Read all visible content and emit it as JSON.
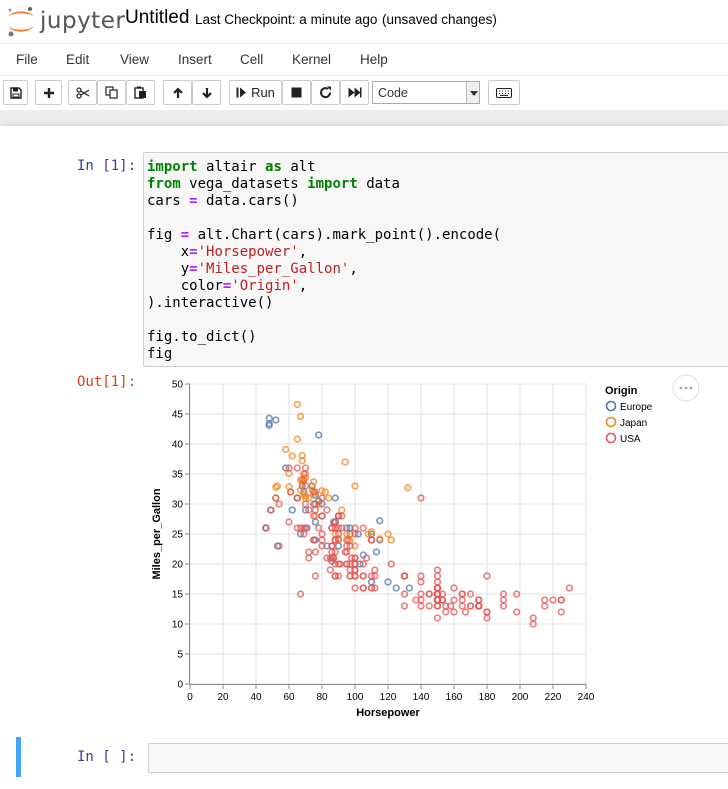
{
  "header": {
    "logo_text": "jupyter",
    "notebook_name": "Untitled",
    "checkpoint": "Last Checkpoint: a minute ago",
    "autosave": "(unsaved changes)"
  },
  "menu": [
    "File",
    "Edit",
    "View",
    "Insert",
    "Cell",
    "Kernel",
    "Help"
  ],
  "toolbar": {
    "icons": [
      "save-icon",
      "plus-icon",
      "cut-icon",
      "copy-icon",
      "paste-icon",
      "arrow-up-icon",
      "arrow-down-icon",
      "step-forward-icon",
      "stop-icon",
      "restart-icon",
      "fast-forward-icon",
      "keyboard-icon"
    ],
    "run_label": "Run",
    "cell_type": "Code"
  },
  "cells": [
    {
      "in_prompt": "In [1]:",
      "out_prompt": "Out[1]:",
      "code_lines": [
        "import altair as alt",
        "from vega_datasets import data",
        "cars = data.cars()",
        "",
        "fig = alt.Chart(cars).mark_point().encode(",
        "    x='Horsepower',",
        "    y='Miles_per_Gallon',",
        "    color='Origin',",
        ").interactive()",
        "",
        "fig.to_dict()",
        "fig"
      ]
    },
    {
      "in_prompt": "In [ ]:"
    }
  ],
  "chart_data": {
    "type": "scatter",
    "xlabel": "Horsepower",
    "ylabel": "Miles_per_Gallon",
    "xlim": [
      0,
      240
    ],
    "ylim": [
      0,
      50
    ],
    "xticks": [
      0,
      20,
      40,
      60,
      80,
      100,
      120,
      140,
      160,
      180,
      200,
      220,
      240
    ],
    "yticks": [
      0,
      5,
      10,
      15,
      20,
      25,
      30,
      35,
      40,
      45,
      50
    ],
    "grid": true,
    "legend": {
      "title": "Origin",
      "position": "right"
    },
    "series": [
      {
        "name": "Europe",
        "color": "#4c78a8",
        "points": [
          [
            46,
            26
          ],
          [
            46,
            26
          ],
          [
            48,
            43.1
          ],
          [
            48,
            44.3
          ],
          [
            48,
            43.4
          ],
          [
            49,
            29
          ],
          [
            52,
            44
          ],
          [
            53,
            23
          ],
          [
            58,
            36
          ],
          [
            62,
            29
          ],
          [
            65,
            31
          ],
          [
            67,
            25
          ],
          [
            68,
            33
          ],
          [
            69,
            32
          ],
          [
            70,
            29
          ],
          [
            71,
            26
          ],
          [
            74,
            33
          ],
          [
            75,
            30
          ],
          [
            76,
            27
          ],
          [
            76,
            24
          ],
          [
            76,
            31.5
          ],
          [
            78,
            30.5
          ],
          [
            78,
            41.5
          ],
          [
            80,
            28
          ],
          [
            80,
            30
          ],
          [
            83,
            23
          ],
          [
            86,
            20.5
          ],
          [
            87,
            27
          ],
          [
            88,
            27
          ],
          [
            88,
            31
          ],
          [
            90,
            28
          ],
          [
            90,
            23
          ],
          [
            95,
            26
          ],
          [
            97,
            26
          ],
          [
            102,
            25
          ],
          [
            103,
            20
          ],
          [
            105,
            21.5
          ],
          [
            110,
            25
          ],
          [
            110,
            17
          ],
          [
            113,
            22
          ],
          [
            115,
            24
          ],
          [
            115,
            27.2
          ],
          [
            120,
            17
          ],
          [
            125,
            16
          ],
          [
            133,
            16
          ]
        ]
      },
      {
        "name": "Japan",
        "color": "#f58518",
        "points": [
          [
            52,
            31
          ],
          [
            52,
            32.8
          ],
          [
            53,
            33
          ],
          [
            58,
            39.1
          ],
          [
            60,
            32.9
          ],
          [
            60,
            35.1
          ],
          [
            61,
            32
          ],
          [
            62,
            38
          ],
          [
            65,
            31
          ],
          [
            65,
            46.6
          ],
          [
            65,
            40.8
          ],
          [
            67,
            32.3
          ],
          [
            67,
            44.6
          ],
          [
            67,
            34
          ],
          [
            68,
            37.2
          ],
          [
            68,
            33.5
          ],
          [
            68,
            38.1
          ],
          [
            68,
            34.1
          ],
          [
            69,
            31.6
          ],
          [
            70,
            35
          ],
          [
            70,
            31.3
          ],
          [
            70,
            34.4
          ],
          [
            70,
            30.9
          ],
          [
            72,
            31
          ],
          [
            74,
            32.4
          ],
          [
            75,
            31.5
          ],
          [
            75,
            33.7
          ],
          [
            76,
            28
          ],
          [
            76,
            32
          ],
          [
            78,
            30
          ],
          [
            80,
            32.2
          ],
          [
            82,
            32
          ],
          [
            84,
            31
          ],
          [
            88,
            25
          ],
          [
            88,
            24
          ],
          [
            90,
            24.2
          ],
          [
            92,
            29
          ],
          [
            94,
            37
          ],
          [
            95,
            25
          ],
          [
            96,
            24
          ],
          [
            97,
            18
          ],
          [
            97,
            23.9
          ],
          [
            100,
            23
          ],
          [
            100,
            33
          ],
          [
            108,
            25
          ],
          [
            110,
            25.4
          ],
          [
            115,
            24.2
          ],
          [
            120,
            25
          ],
          [
            122,
            24
          ],
          [
            132,
            32.7
          ]
        ]
      },
      {
        "name": "USA",
        "color": "#e45756",
        "points": [
          [
            130,
            18
          ],
          [
            165,
            15
          ],
          [
            150,
            18
          ],
          [
            150,
            16
          ],
          [
            140,
            17
          ],
          [
            198,
            15
          ],
          [
            220,
            14
          ],
          [
            215,
            14
          ],
          [
            225,
            14
          ],
          [
            190,
            15
          ],
          [
            170,
            15
          ],
          [
            160,
            14
          ],
          [
            150,
            15
          ],
          [
            225,
            14
          ],
          [
            95,
            22
          ],
          [
            97,
            18
          ],
          [
            85,
            21
          ],
          [
            88,
            27
          ],
          [
            88,
            26
          ],
          [
            90,
            28
          ],
          [
            100,
            19
          ],
          [
            105,
            18
          ],
          [
            100,
            21
          ],
          [
            88,
            24
          ],
          [
            100,
            20
          ],
          [
            165,
            15
          ],
          [
            175,
            14
          ],
          [
            153,
            15
          ],
          [
            150,
            14
          ],
          [
            180,
            12
          ],
          [
            170,
            13
          ],
          [
            175,
            13
          ],
          [
            110,
            18
          ],
          [
            72,
            22
          ],
          [
            100,
            19
          ],
          [
            88,
            18
          ],
          [
            86,
            23
          ],
          [
            90,
            28
          ],
          [
            70,
            30
          ],
          [
            76,
            30
          ],
          [
            65,
            31
          ],
          [
            69,
            35
          ],
          [
            60,
            27
          ],
          [
            70,
            26
          ],
          [
            95,
            24
          ],
          [
            80,
            25
          ],
          [
            54,
            23
          ],
          [
            90,
            20
          ],
          [
            86,
            21
          ],
          [
            165,
            13
          ],
          [
            175,
            14
          ],
          [
            150,
            15
          ],
          [
            153,
            14
          ],
          [
            150,
            17
          ],
          [
            208,
            11
          ],
          [
            155,
            13
          ],
          [
            160,
            12
          ],
          [
            190,
            13
          ],
          [
            97,
            19
          ],
          [
            150,
            15
          ],
          [
            130,
            13
          ],
          [
            140,
            13
          ],
          [
            150,
            14
          ],
          [
            112,
            18
          ],
          [
            76,
            22
          ],
          [
            87,
            21
          ],
          [
            69,
            26
          ],
          [
            86,
            22
          ],
          [
            92,
            28
          ],
          [
            97,
            23
          ],
          [
            80,
            28
          ],
          [
            88,
            27
          ],
          [
            175,
            13
          ],
          [
            150,
            14
          ],
          [
            145,
            13
          ],
          [
            137,
            14
          ],
          [
            150,
            15
          ],
          [
            198,
            12
          ],
          [
            150,
            13
          ],
          [
            158,
            13
          ],
          [
            150,
            14
          ],
          [
            215,
            13
          ],
          [
            225,
            12
          ],
          [
            175,
            13
          ],
          [
            105,
            18
          ],
          [
            100,
            16
          ],
          [
            100,
            18
          ],
          [
            88,
            18
          ],
          [
            95,
            23
          ],
          [
            46,
            26
          ],
          [
            150,
            11
          ],
          [
            167,
            12
          ],
          [
            170,
            13
          ],
          [
            180,
            12
          ],
          [
            100,
            18
          ],
          [
            88,
            20
          ],
          [
            72,
            21
          ],
          [
            94,
            22
          ],
          [
            90,
            18
          ],
          [
            85,
            19
          ],
          [
            107,
            21
          ],
          [
            90,
            26
          ],
          [
            145,
            15
          ],
          [
            230,
            16
          ],
          [
            49,
            29
          ],
          [
            75,
            24
          ],
          [
            91,
            20
          ],
          [
            112,
            19
          ],
          [
            150,
            15
          ],
          [
            110,
            24
          ],
          [
            122,
            20
          ],
          [
            180,
            11
          ],
          [
            95,
            20
          ],
          [
            100,
            21
          ],
          [
            100,
            19
          ],
          [
            67,
            15
          ],
          [
            80,
            31
          ],
          [
            65,
            26
          ],
          [
            75,
            32
          ],
          [
            100,
            25
          ],
          [
            110,
            16
          ],
          [
            105,
            16
          ],
          [
            140,
            18
          ],
          [
            150,
            16
          ],
          [
            150,
            13
          ],
          [
            140,
            14
          ],
          [
            150,
            14
          ],
          [
            83,
            29
          ],
          [
            67,
            26
          ],
          [
            78,
            26
          ],
          [
            52,
            31
          ],
          [
            61,
            32
          ],
          [
            75,
            28
          ],
          [
            75,
            24
          ],
          [
            100,
            26
          ],
          [
            110,
            24
          ],
          [
            105,
            26
          ],
          [
            140,
            31
          ],
          [
            150,
            19
          ],
          [
            180,
            18
          ],
          [
            145,
            15
          ],
          [
            130,
            15
          ],
          [
            150,
            16
          ],
          [
            150,
            15
          ],
          [
            110,
            16
          ],
          [
            105,
            16
          ],
          [
            72,
            29
          ],
          [
            88,
            24
          ],
          [
            86,
            26
          ],
          [
            90,
            25
          ],
          [
            70,
            33
          ],
          [
            76,
            29
          ],
          [
            65,
            36
          ],
          [
            69,
            34
          ],
          [
            60,
            36
          ],
          [
            70,
            36
          ],
          [
            95,
            20
          ],
          [
            80,
            23
          ],
          [
            54,
            30
          ],
          [
            90,
            24
          ],
          [
            86,
            26
          ],
          [
            165,
            14
          ],
          [
            175,
            13
          ],
          [
            150,
            15
          ],
          [
            153,
            14
          ],
          [
            150,
            15
          ],
          [
            208,
            10
          ],
          [
            155,
            12
          ],
          [
            160,
            16
          ],
          [
            190,
            14
          ],
          [
            97,
            25
          ],
          [
            150,
            16
          ],
          [
            130,
            18
          ],
          [
            140,
            15
          ],
          [
            150,
            14
          ],
          [
            112,
            16
          ],
          [
            76,
            18
          ],
          [
            87,
            21
          ],
          [
            69,
            25
          ],
          [
            86,
            23
          ],
          [
            92,
            26
          ],
          [
            97,
            20
          ],
          [
            80,
            24
          ],
          [
            88,
            22
          ],
          [
            100,
            20
          ],
          [
            130,
            18
          ],
          [
            98,
            21
          ],
          [
            100,
            18
          ],
          [
            105,
            20
          ],
          [
            83,
            21
          ]
        ]
      }
    ]
  }
}
